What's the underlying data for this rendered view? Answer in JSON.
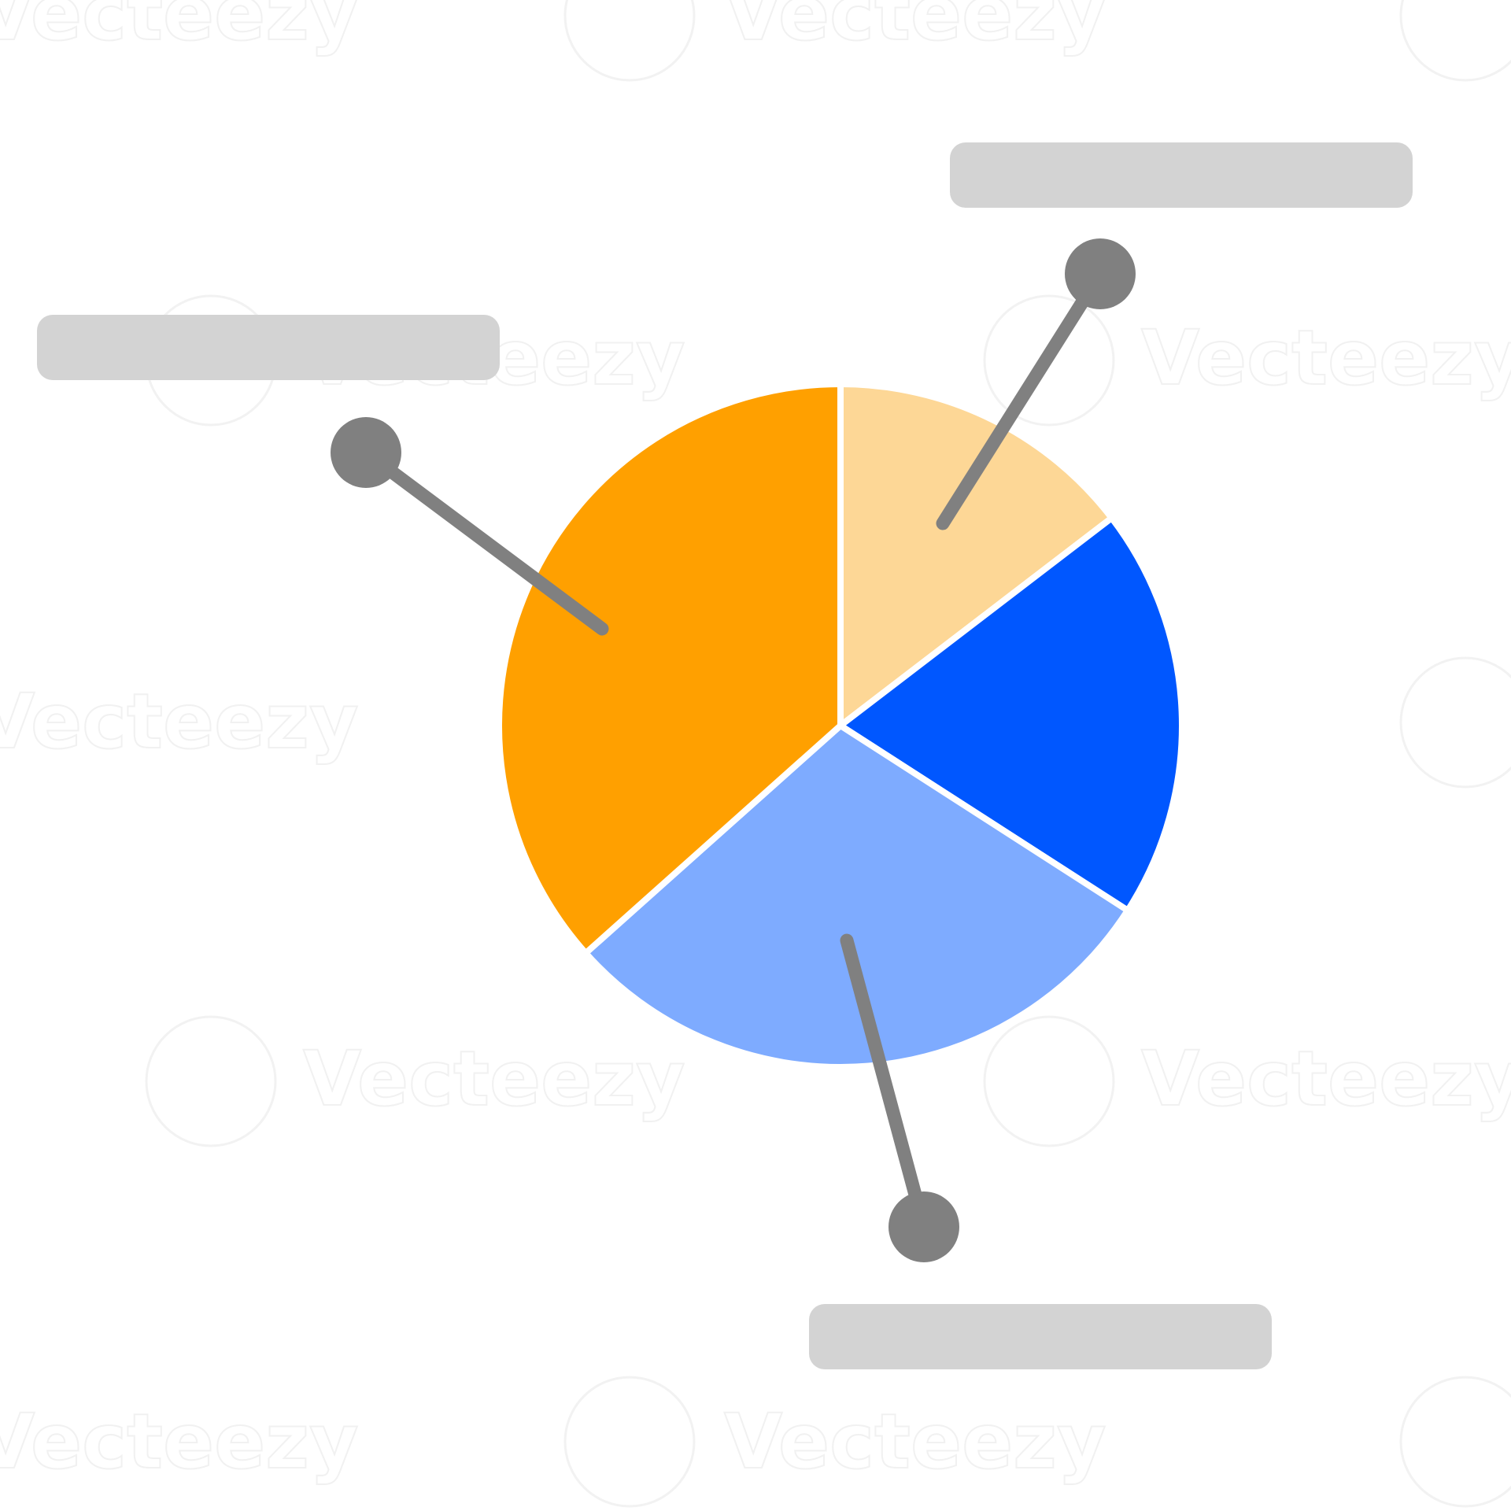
{
  "watermark": {
    "brand": "Vecteezy"
  },
  "colors": {
    "background": "#ffffff",
    "separator": "#ffffff",
    "leader": "#808080",
    "placeholder": "#d3d3d3"
  },
  "chart_data": {
    "type": "pie",
    "title": "",
    "start_angle_deg": 0,
    "direction": "clockwise",
    "slices": [
      {
        "value": 14.6,
        "color": "#fdd796"
      },
      {
        "value": 19.5,
        "color": "#0057ff"
      },
      {
        "value": 29.3,
        "color": "#7eabff"
      },
      {
        "value": 36.6,
        "color": "#ffa000"
      }
    ],
    "callouts": [
      {
        "slice": 0,
        "label": ""
      },
      {
        "slice": 2,
        "label": ""
      },
      {
        "slice": 3,
        "label": ""
      }
    ]
  }
}
